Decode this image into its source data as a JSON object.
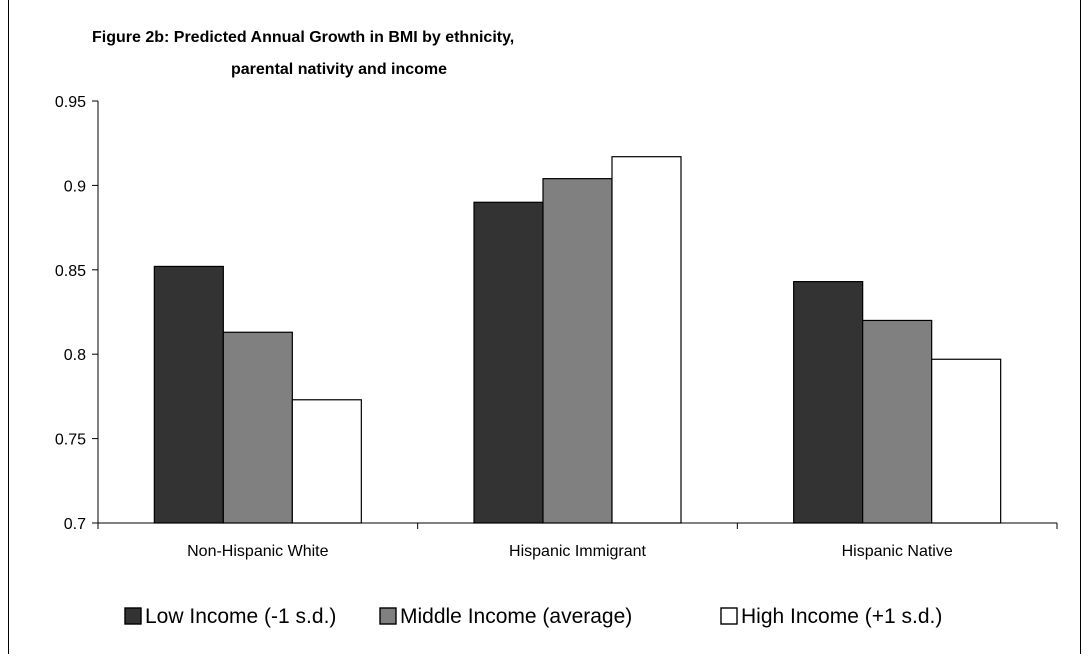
{
  "chart_data": {
    "type": "bar",
    "title_lines": [
      "Figure 2b: Predicted Annual Growth in BMI by ethnicity,",
      "parental nativity and income"
    ],
    "categories": [
      "Non-Hispanic White",
      "Hispanic Immigrant",
      "Hispanic Native"
    ],
    "series": [
      {
        "name": "Low Income (-1 s.d.)",
        "values": [
          0.852,
          0.89,
          0.843
        ],
        "color": "#333333"
      },
      {
        "name": "Middle Income (average)",
        "values": [
          0.813,
          0.904,
          0.82
        ],
        "color": "#808080"
      },
      {
        "name": "High Income (+1 s.d.)",
        "values": [
          0.773,
          0.917,
          0.797
        ],
        "color": "#ffffff"
      }
    ],
    "ylim": [
      0.7,
      0.95
    ],
    "yticks": [
      "0.7",
      "0.75",
      "0.8",
      "0.85",
      "0.9",
      "0.95"
    ],
    "xlabel": "",
    "ylabel": "",
    "grid": false,
    "legend_position": "bottom"
  }
}
